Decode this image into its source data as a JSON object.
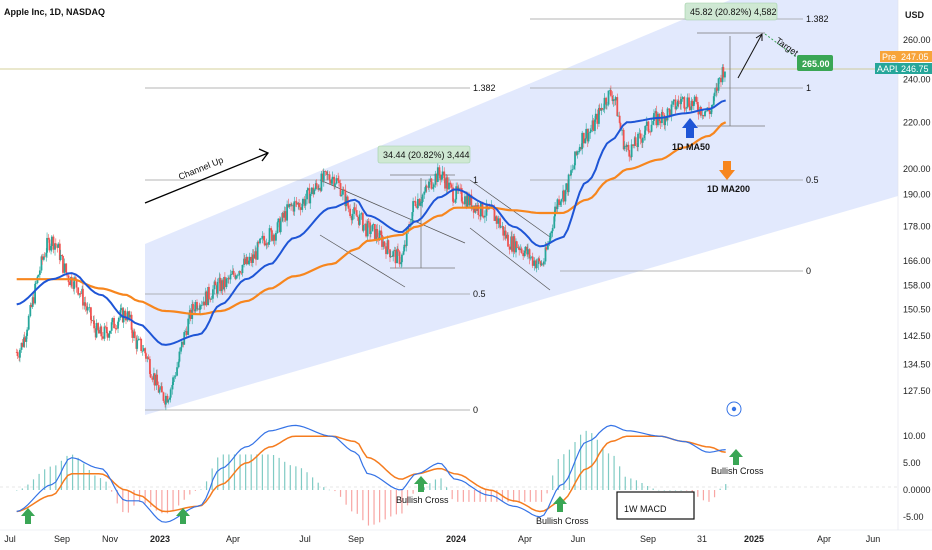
{
  "header": {
    "title": "Apple Inc, 1D, NASDAQ",
    "currency": "USD"
  },
  "price_labels": {
    "pre_tag": "Pre",
    "pre_value": "247.05",
    "symbol_tag": "AAPL",
    "last_value": "246.75",
    "target_value": "265.00"
  },
  "colors": {
    "up": "#26a69a",
    "down": "#ef5350",
    "ma50": "#1e55d6",
    "ma200": "#f7861e",
    "channel": "#dde5fd",
    "macd": "#3573e6",
    "signal": "#f57c1f",
    "arrow_green": "#3aa655"
  },
  "annotations": {
    "channel_up": "Channel Up",
    "measure_1": "34.44 (20.82%) 3,444",
    "measure_2": "45.82 (20.82%) 4,582",
    "target": "Target",
    "ma50": "1D MA50",
    "ma200": "1D MA200",
    "macd_box": "1W MACD",
    "bullish_cross_1": "Bullish Cross",
    "bullish_cross_2": "Bullish Cross",
    "bullish_cross_3": "Bullish Cross"
  },
  "fib_levels": {
    "left": [
      "1.382",
      "1",
      "0.5",
      "0"
    ],
    "right": [
      "1.382",
      "1",
      "0.5",
      "0"
    ]
  },
  "chart_data": {
    "type": "line",
    "title": "Apple Inc, 1D, NASDAQ",
    "price_axis": {
      "scale": "log",
      "range": [
        119,
        282
      ],
      "ticks": [
        127.5,
        134.5,
        142.5,
        150.5,
        158,
        166,
        178,
        190,
        200,
        220,
        240,
        260
      ],
      "tick_labels": [
        "127.50",
        "134.50",
        "142.50",
        "150.50",
        "158.00",
        "166.00",
        "178.00",
        "190.00",
        "200.00",
        "220.00",
        "240.00",
        "260.00"
      ]
    },
    "time_axis": {
      "ticks": [
        "Jul",
        "Sep",
        "Nov",
        "2023",
        "Apr",
        "Jul",
        "Sep",
        "2024",
        "Apr",
        "Jun",
        "Sep",
        "31",
        "2025",
        "Apr",
        "Jun"
      ]
    },
    "x_dates": [
      "2022-07-01",
      "2022-08-15",
      "2022-09-07",
      "2022-10-15",
      "2022-11-15",
      "2022-12-01",
      "2023-01-03",
      "2023-02-15",
      "2023-03-15",
      "2023-04-15",
      "2023-05-15",
      "2023-06-15",
      "2023-07-31",
      "2023-08-31",
      "2023-09-15",
      "2023-10-26",
      "2023-11-15",
      "2023-12-14",
      "2024-01-02",
      "2024-02-15",
      "2024-03-15",
      "2024-04-19",
      "2024-05-15",
      "2024-06-15",
      "2024-07-16",
      "2024-08-05",
      "2024-09-15",
      "2024-10-15",
      "2024-11-15",
      "2024-12-06"
    ],
    "series": [
      {
        "name": "AAPL",
        "values": [
          138,
          173,
          160,
          143,
          149,
          140,
          126,
          153,
          158,
          165,
          175,
          186,
          197,
          182,
          177,
          167,
          188,
          198,
          190,
          183,
          172,
          165,
          190,
          215,
          233,
          208,
          222,
          230,
          225,
          246
        ]
      },
      {
        "name": "1D MA50",
        "values": [
          152,
          160,
          162,
          155,
          148,
          146,
          140,
          143,
          152,
          160,
          165,
          174,
          185,
          188,
          182,
          176,
          180,
          189,
          192,
          186,
          178,
          171,
          174,
          195,
          212,
          220,
          222,
          224,
          226,
          230
        ]
      },
      {
        "name": "1D MA200",
        "values": [
          160,
          160,
          160,
          157,
          155,
          153,
          150,
          149,
          150,
          153,
          157,
          161,
          165,
          170,
          173,
          175,
          178,
          182,
          185,
          185,
          184,
          183,
          183,
          188,
          196,
          200,
          204,
          209,
          214,
          220
        ]
      }
    ],
    "macd": {
      "values": [
        -4,
        1,
        6,
        4,
        -2,
        -2,
        -6,
        -3,
        4,
        8,
        11,
        12,
        10,
        7,
        3,
        0,
        3,
        5,
        2,
        -1,
        -3,
        -5,
        1,
        9,
        12,
        11,
        10,
        9,
        7,
        7.5
      ],
      "signal": [
        -4,
        -1,
        3,
        3,
        0,
        -1,
        -4,
        -3,
        1,
        5,
        8,
        10,
        10,
        9,
        6,
        2,
        3,
        4,
        3,
        0,
        -2,
        -4,
        -2,
        4,
        9,
        10,
        10,
        9,
        8,
        7
      ],
      "axis_ticks": [
        10,
        5,
        0,
        -5
      ],
      "axis_labels": [
        "10.00",
        "5.00",
        "0.0000",
        "-5.00"
      ],
      "range": [
        -6.5,
        13
      ]
    },
    "channel": {
      "lower_start": 119,
      "upper_start": 172
    }
  }
}
